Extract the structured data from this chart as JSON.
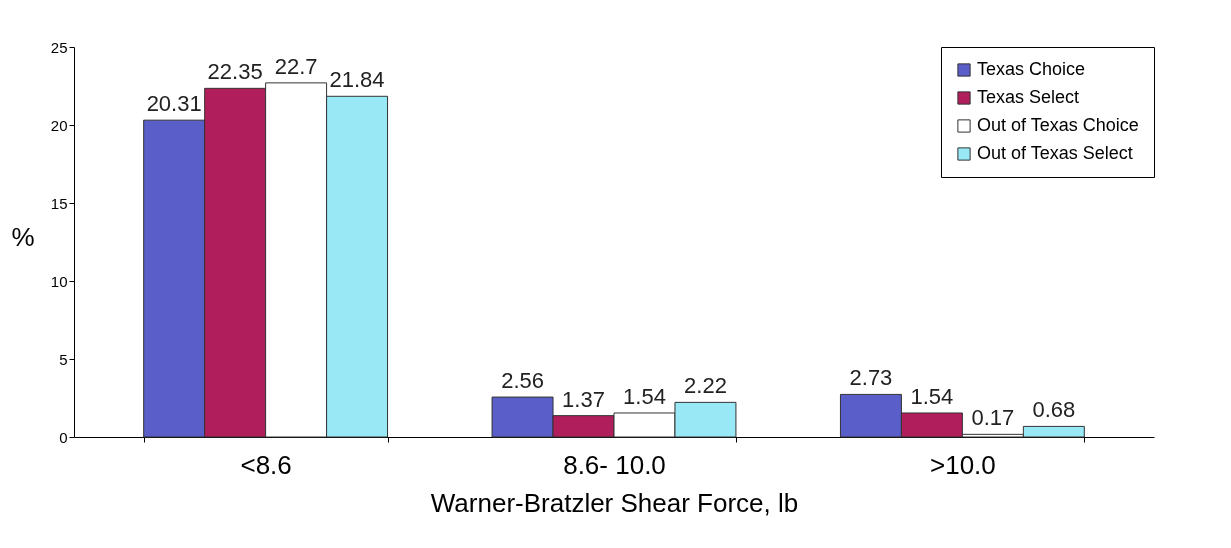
{
  "chart_data": {
    "type": "bar",
    "xlabel": "Warner-Bratzler Shear Force, lb",
    "ylabel": "%",
    "categories": [
      "<8.6",
      "8.6- 10.0",
      ">10.0"
    ],
    "series": [
      {
        "name": "Texas Choice",
        "color": "#5a5ec8",
        "values": [
          20.31,
          2.56,
          2.73
        ]
      },
      {
        "name": "Texas Select",
        "color": "#b01e5c",
        "values": [
          22.35,
          1.37,
          1.54
        ]
      },
      {
        "name": "Out of Texas Choice",
        "color": "#ffffff",
        "values": [
          22.7,
          1.54,
          0.17
        ]
      },
      {
        "name": "Out of Texas Select",
        "color": "#99e8f6",
        "values": [
          21.84,
          2.22,
          0.68
        ]
      }
    ],
    "ylim": [
      0,
      25
    ],
    "yticks": [
      0,
      5,
      10,
      15,
      20,
      25
    ],
    "grid": false,
    "legend": "top right",
    "data_labels": true
  }
}
